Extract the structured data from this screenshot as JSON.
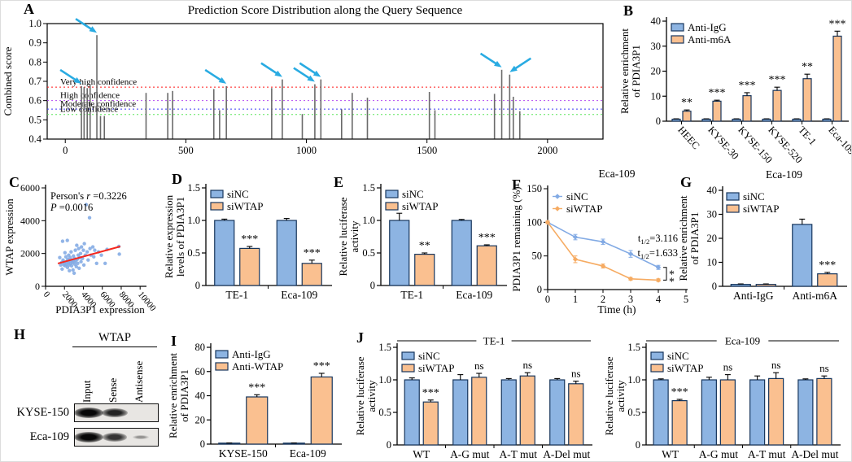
{
  "panels": {
    "A": {
      "letter": "A"
    },
    "B": {
      "letter": "B"
    },
    "C": {
      "letter": "C"
    },
    "D": {
      "letter": "D"
    },
    "E": {
      "letter": "E"
    },
    "F": {
      "letter": "F"
    },
    "G": {
      "letter": "G"
    },
    "H": {
      "letter": "H"
    },
    "I": {
      "letter": "I"
    },
    "J": {
      "letter": "J"
    }
  },
  "colors": {
    "bar_blue": "#8db4e2",
    "bar_orange": "#fac090",
    "bar_border": "#17365d",
    "line_blue": "#82aae4",
    "line_orange": "#f6ab62",
    "dot_blue": "#82aae4",
    "trend_red": "#f5281e",
    "arrow_cyan": "#29abe2",
    "stem_gray": "#6a6a6a",
    "axis_black": "#000000"
  },
  "blot": {
    "header": "WTAP",
    "lanes": [
      "Input",
      "Sense",
      "Antisense"
    ],
    "rows": [
      {
        "label": "KYSE-150",
        "bands": [
          1,
          0.8,
          0
        ]
      },
      {
        "label": "Eca-109",
        "bands": [
          1,
          0.7,
          0.2
        ]
      }
    ]
  },
  "chart_data": [
    {
      "id": "A",
      "type": "stem",
      "title": "Prediction Score Distribution along the Query Sequence",
      "ylabel": "Combined score",
      "xlim": [
        -75,
        2230
      ],
      "ylim": [
        0.4,
        1.0
      ],
      "yticks": [
        0.4,
        0.5,
        0.6,
        0.7,
        0.8,
        0.9,
        1.0
      ],
      "xticks": [
        0,
        500,
        1000,
        1500,
        2000
      ],
      "confidence_lines": [
        {
          "label": "Very high confidence",
          "value": 0.67,
          "color": "#ff1616"
        },
        {
          "label": "High confidence",
          "value": 0.6,
          "color": "#b44bf2"
        },
        {
          "label": "Moderate confidence",
          "value": 0.556,
          "color": "#3a3af5"
        },
        {
          "label": "Low confidence",
          "value": 0.528,
          "color": "#59e659"
        }
      ],
      "stems": [
        [
          67,
          0.675
        ],
        [
          78,
          0.67
        ],
        [
          91,
          0.665
        ],
        [
          103,
          0.675
        ],
        [
          131,
          0.94
        ],
        [
          146,
          0.52
        ],
        [
          162,
          0.52
        ],
        [
          335,
          0.64
        ],
        [
          425,
          0.64
        ],
        [
          445,
          0.65
        ],
        [
          616,
          0.66
        ],
        [
          640,
          0.55
        ],
        [
          668,
          0.675
        ],
        [
          856,
          0.665
        ],
        [
          900,
          0.71
        ],
        [
          983,
          0.53
        ],
        [
          1035,
          0.685
        ],
        [
          1060,
          0.71
        ],
        [
          1146,
          0.555
        ],
        [
          1190,
          0.64
        ],
        [
          1253,
          0.615
        ],
        [
          1510,
          0.645
        ],
        [
          1533,
          0.55
        ],
        [
          1780,
          0.635
        ],
        [
          1810,
          0.76
        ],
        [
          1843,
          0.735
        ],
        [
          1858,
          0.62
        ],
        [
          1885,
          0.545
        ]
      ],
      "arrows": [
        {
          "x": 67
        },
        {
          "x": 131
        },
        {
          "x": 668
        },
        {
          "x": 900
        },
        {
          "x": 1035
        },
        {
          "x": 1060
        },
        {
          "x": 1810
        },
        {
          "x": 1843,
          "dir": "left"
        }
      ]
    },
    {
      "id": "B",
      "type": "bar",
      "ylabel": [
        "Relative enrichment",
        "of PDIA3P1"
      ],
      "ylim": [
        0,
        40
      ],
      "yticks": [
        0,
        10,
        20,
        30,
        40
      ],
      "categories": [
        "HEEC",
        "KYSE-30",
        "KYSE-150",
        "KYSE-520",
        "TE-1",
        "Eca-109"
      ],
      "rotate_labels": true,
      "series": [
        {
          "name": "Anti-IgG",
          "color": "blue",
          "values": [
            0.8,
            0.8,
            0.8,
            0.8,
            0.8,
            0.8
          ],
          "errors": [
            0.15,
            0.15,
            0.15,
            0.15,
            0.15,
            0.15
          ]
        },
        {
          "name": "Anti-m6A",
          "color": "orange",
          "values": [
            4,
            8,
            10.2,
            12.3,
            17,
            34
          ],
          "errors": [
            0.5,
            0.4,
            1.2,
            1.3,
            1.8,
            2
          ]
        }
      ],
      "significance": [
        "**",
        "***",
        "***",
        "***",
        "**",
        "***"
      ]
    },
    {
      "id": "C",
      "type": "scatter",
      "xlabel": "PDIA3P1 expression",
      "ylabel": "WTAP expression",
      "xlim": [
        0,
        10500
      ],
      "ylim": [
        0,
        6000
      ],
      "xticks": [
        0,
        2000,
        4000,
        6000,
        8000,
        10000
      ],
      "yticks": [
        0,
        2000,
        4000,
        6000
      ],
      "annotation": {
        "line1_plain": "Person's ",
        "line1_italic": "r",
        "line1_value": " =0.3226",
        "line2_italic": "P",
        "line2_value": " =0.0016"
      },
      "pearson_r": 0.3226,
      "p_value": 0.0016,
      "trend": [
        [
          1300,
          1390
        ],
        [
          7900,
          2430
        ]
      ],
      "points": [
        [
          1500,
          1750
        ],
        [
          1600,
          1300
        ],
        [
          1700,
          1450
        ],
        [
          1750,
          1050
        ],
        [
          1800,
          2750
        ],
        [
          1850,
          1600
        ],
        [
          1900,
          1500
        ],
        [
          1950,
          1300
        ],
        [
          2000,
          1400
        ],
        [
          2050,
          2050
        ],
        [
          2100,
          1250
        ],
        [
          2150,
          1800
        ],
        [
          2200,
          1500
        ],
        [
          2250,
          1350
        ],
        [
          2300,
          2800
        ],
        [
          2320,
          1150
        ],
        [
          2350,
          1650
        ],
        [
          2400,
          1450
        ],
        [
          2450,
          1900
        ],
        [
          2500,
          1300
        ],
        [
          2520,
          950
        ],
        [
          2550,
          1550
        ],
        [
          2600,
          1750
        ],
        [
          2650,
          1400
        ],
        [
          2700,
          2100
        ],
        [
          2750,
          1250
        ],
        [
          2800,
          1600
        ],
        [
          2850,
          1450
        ],
        [
          2900,
          1000
        ],
        [
          2950,
          1850
        ],
        [
          3000,
          1500
        ],
        [
          3020,
          800
        ],
        [
          3050,
          1700
        ],
        [
          3100,
          1350
        ],
        [
          3150,
          2200
        ],
        [
          3200,
          1550
        ],
        [
          3250,
          1200
        ],
        [
          3300,
          2500
        ],
        [
          3350,
          1650
        ],
        [
          3400,
          1400
        ],
        [
          3450,
          1900
        ],
        [
          3500,
          2300
        ],
        [
          3550,
          1100
        ],
        [
          3600,
          1750
        ],
        [
          3700,
          2000
        ],
        [
          3750,
          1500
        ],
        [
          3800,
          2400
        ],
        [
          3900,
          1700
        ],
        [
          4000,
          2200
        ],
        [
          4050,
          1300
        ],
        [
          4100,
          2600
        ],
        [
          4200,
          1900
        ],
        [
          4300,
          4980
        ],
        [
          4400,
          2100
        ],
        [
          4500,
          1600
        ],
        [
          4650,
          4180
        ],
        [
          4700,
          2300
        ],
        [
          4800,
          1900
        ],
        [
          5000,
          2400
        ],
        [
          5100,
          1800
        ],
        [
          5200,
          2200
        ],
        [
          5400,
          1400
        ],
        [
          5600,
          2100
        ],
        [
          5900,
          1900
        ],
        [
          6300,
          1400
        ],
        [
          6500,
          2250
        ],
        [
          7750,
          2430
        ],
        [
          7800,
          1960
        ]
      ]
    },
    {
      "id": "D",
      "type": "bar",
      "ylabel": [
        "Relative expression",
        "levels of PDIA3P1"
      ],
      "ylim": [
        0,
        1.5
      ],
      "yticks": [
        0,
        0.5,
        1,
        1.5
      ],
      "ytick_labels": [
        "0",
        "0.5",
        "1.0",
        "1.5"
      ],
      "categories": [
        "TE-1",
        "Eca-109"
      ],
      "series": [
        {
          "name": "siNC",
          "color": "blue",
          "values": [
            1,
            1
          ],
          "errors": [
            0.02,
            0.03
          ]
        },
        {
          "name": "siWTAP",
          "color": "orange",
          "values": [
            0.57,
            0.34
          ],
          "errors": [
            0.03,
            0.05
          ]
        }
      ],
      "significance": [
        "***",
        "***"
      ]
    },
    {
      "id": "E",
      "type": "bar",
      "ylabel": [
        "Relative luciferase",
        "activity"
      ],
      "ylim": [
        0,
        1.5
      ],
      "yticks": [
        0,
        0.5,
        1,
        1.5
      ],
      "ytick_labels": [
        "0",
        "0.5",
        "1.0",
        "1.5"
      ],
      "categories": [
        "TE-1",
        "Eca-109"
      ],
      "series": [
        {
          "name": "siNC",
          "color": "blue",
          "values": [
            1,
            1
          ],
          "errors": [
            0.11,
            0.015
          ]
        },
        {
          "name": "siWTAP",
          "color": "orange",
          "values": [
            0.48,
            0.61
          ],
          "errors": [
            0.02,
            0.015
          ]
        }
      ],
      "significance": [
        "**",
        "***"
      ]
    },
    {
      "id": "F",
      "type": "line",
      "title": "Eca-109",
      "xlabel": "Time (h)",
      "ylabel": "PDIA3P1 remaining (%)",
      "xlim": [
        0,
        5
      ],
      "ylim": [
        0,
        150
      ],
      "xticks": [
        0,
        1,
        2,
        3,
        4,
        5
      ],
      "yticks": [
        0,
        50,
        100,
        150
      ],
      "x": [
        0,
        1,
        2,
        3,
        4
      ],
      "series": [
        {
          "name": "siNC",
          "color": "blue",
          "values": [
            100,
            78,
            71,
            53,
            33
          ],
          "errors": [
            2,
            4,
            4,
            5,
            3
          ],
          "half_life": "t1/2=3.116"
        },
        {
          "name": "siWTAP",
          "color": "orange",
          "values": [
            100,
            45,
            35,
            16,
            14
          ],
          "errors": [
            2,
            5,
            3,
            2,
            2
          ],
          "half_life": "t1/2=1.633"
        }
      ],
      "significance": "**"
    },
    {
      "id": "G",
      "type": "bar",
      "title": "Eca-109",
      "ylabel": [
        "Relative enrichment",
        "of PDIA3P1"
      ],
      "ylim": [
        0,
        40
      ],
      "yticks": [
        0,
        10,
        20,
        30,
        40
      ],
      "categories": [
        "Anti-IgG",
        "Anti-m6A"
      ],
      "series": [
        {
          "name": "siNC",
          "color": "blue",
          "values": [
            0.8,
            25.8
          ],
          "errors": [
            0.2,
            2.2
          ]
        },
        {
          "name": "siWTAP",
          "color": "orange",
          "values": [
            0.8,
            5.2
          ],
          "errors": [
            0.2,
            0.6
          ]
        }
      ],
      "significance": [
        "",
        "***"
      ]
    },
    {
      "id": "I",
      "type": "bar",
      "ylabel": [
        "Relative enrichment",
        "of PDIA3P1"
      ],
      "ylim": [
        0,
        80
      ],
      "yticks": [
        0,
        20,
        40,
        60,
        80
      ],
      "categories": [
        "KYSE-150",
        "Eca-109"
      ],
      "series": [
        {
          "name": "Anti-IgG",
          "color": "blue",
          "values": [
            0.8,
            0.8
          ],
          "errors": [
            0.15,
            0.15
          ]
        },
        {
          "name": "Anti-WTAP",
          "color": "orange",
          "values": [
            39,
            55.5
          ],
          "errors": [
            1.8,
            3
          ]
        }
      ],
      "significance": [
        "***",
        "***"
      ]
    },
    {
      "id": "J1",
      "type": "bar",
      "title": "TE-1",
      "title_line": true,
      "ylabel": [
        "Relative luciferase",
        "activity"
      ],
      "ylim": [
        0,
        1.5
      ],
      "yticks": [
        0,
        0.5,
        1,
        1.5
      ],
      "ytick_labels": [
        "0",
        "0.5",
        "1.0",
        "1.5"
      ],
      "categories": [
        "WT",
        "A-G mut",
        "A-T mut",
        "A-Del mut"
      ],
      "series": [
        {
          "name": "siNC",
          "color": "blue",
          "values": [
            1,
            1,
            1,
            1
          ],
          "errors": [
            0.03,
            0.08,
            0.02,
            0.02
          ]
        },
        {
          "name": "siWTAP",
          "color": "orange",
          "values": [
            0.66,
            1.04,
            1.06,
            0.94
          ],
          "errors": [
            0.03,
            0.06,
            0.05,
            0.04
          ]
        }
      ],
      "significance": [
        "***",
        "ns",
        "ns",
        "ns"
      ]
    },
    {
      "id": "J2",
      "type": "bar",
      "title": "Eca-109",
      "title_line": true,
      "ylabel": [
        "Relative luciferase",
        "activity"
      ],
      "ylim": [
        0,
        1.5
      ],
      "yticks": [
        0,
        0.5,
        1,
        1.5
      ],
      "ytick_labels": [
        "0",
        "0.5",
        "1.0",
        "1.5"
      ],
      "categories": [
        "WT",
        "A-G mut",
        "A-T mut",
        "A-Del mut"
      ],
      "series": [
        {
          "name": "siNC",
          "color": "blue",
          "values": [
            1,
            1,
            1,
            1
          ],
          "errors": [
            0.015,
            0.04,
            0.06,
            0.015
          ]
        },
        {
          "name": "siWTAP",
          "color": "orange",
          "values": [
            0.68,
            1.0,
            1.02,
            1.02
          ],
          "errors": [
            0.02,
            0.08,
            0.09,
            0.04
          ]
        }
      ],
      "significance": [
        "***",
        "ns",
        "ns",
        "ns"
      ]
    }
  ]
}
